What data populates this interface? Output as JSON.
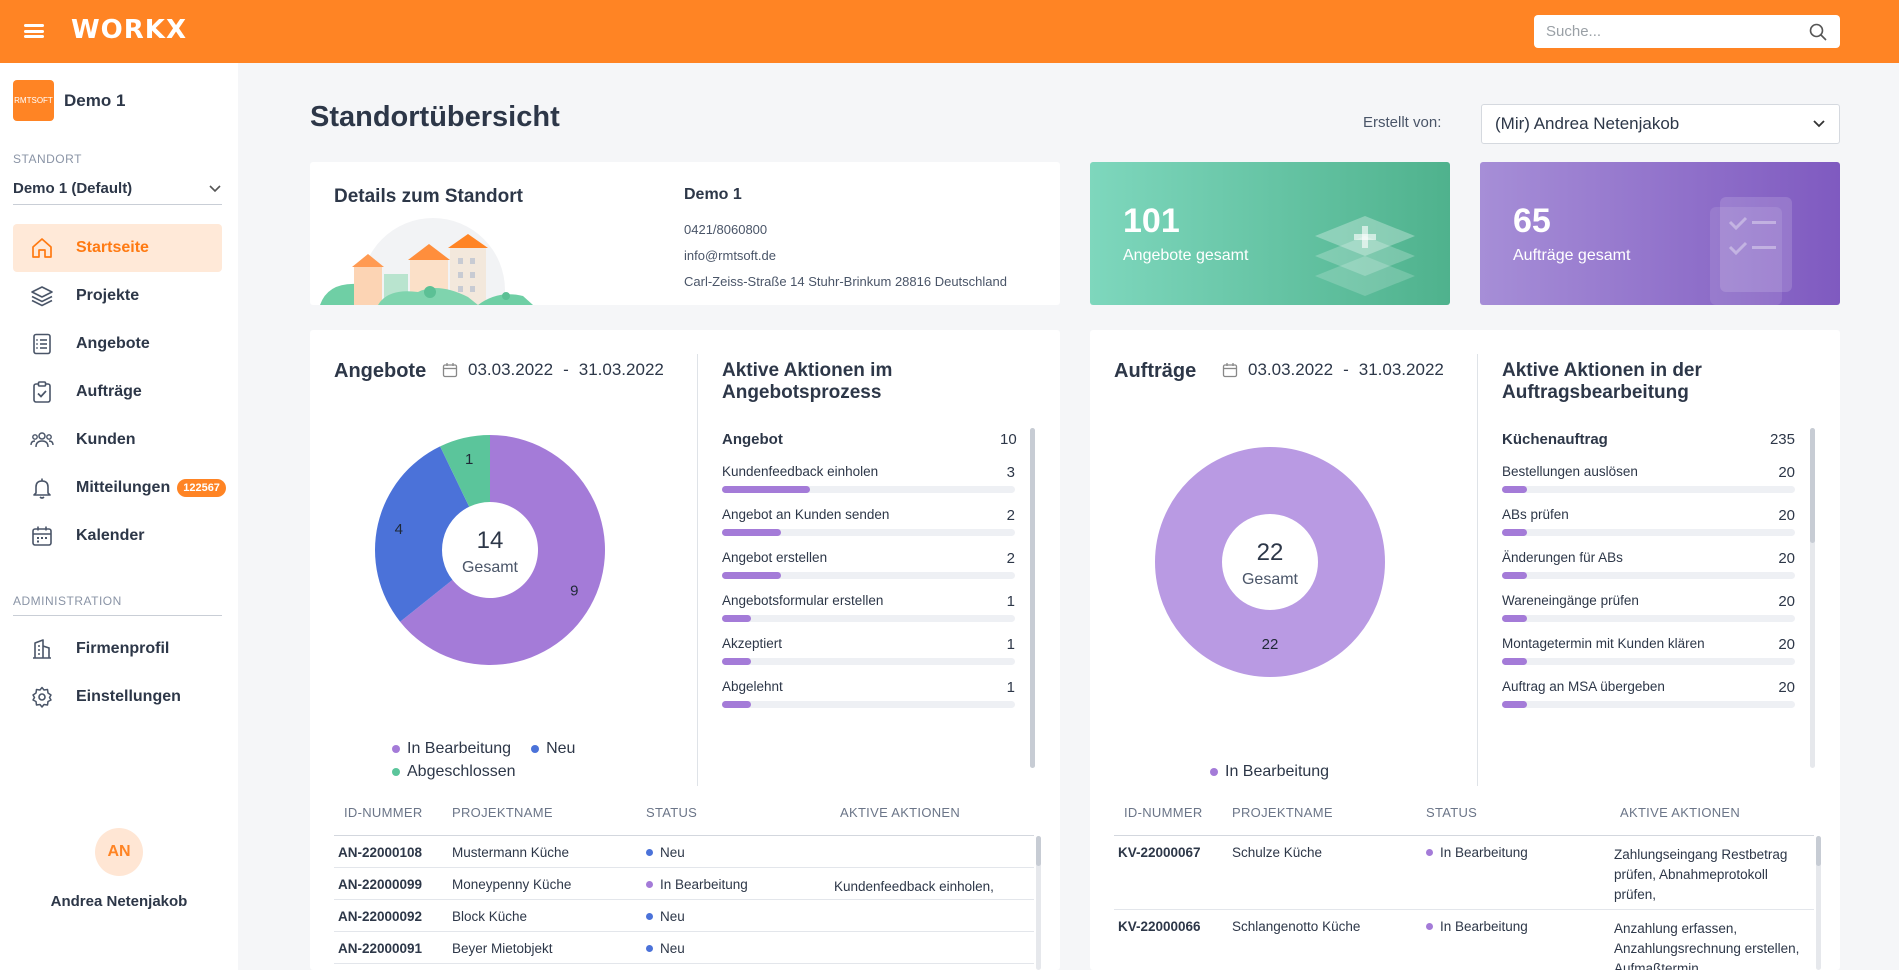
{
  "colors": {
    "brand": "#ff8424",
    "purple": "#a47bd8",
    "blue": "#4b72d9",
    "green": "#5bc59b"
  },
  "header": {
    "logo": "WORKX",
    "search_placeholder": "Suche..."
  },
  "sidebar": {
    "site_name": "Demo 1",
    "site_logo_text": "RMTSOFT",
    "standort_label": "STANDORT",
    "standort_value": "Demo 1 (Default)",
    "items": [
      {
        "label": "Startseite",
        "icon": "home-icon"
      },
      {
        "label": "Projekte",
        "icon": "layers-icon"
      },
      {
        "label": "Angebote",
        "icon": "document-list-icon"
      },
      {
        "label": "Aufträge",
        "icon": "clipboard-check-icon"
      },
      {
        "label": "Kunden",
        "icon": "users-icon"
      },
      {
        "label": "Mitteilungen",
        "icon": "bell-icon",
        "badge": "122567"
      },
      {
        "label": "Kalender",
        "icon": "calendar-icon"
      }
    ],
    "admin_label": "ADMINISTRATION",
    "admin_items": [
      {
        "label": "Firmenprofil",
        "icon": "building-icon"
      },
      {
        "label": "Einstellungen",
        "icon": "gear-icon"
      }
    ],
    "user_initials": "AN",
    "user_name": "Andrea Netenjakob"
  },
  "main": {
    "title": "Standortübersicht",
    "creator_label": "Erstellt von:",
    "creator_value": "(Mir) Andrea Netenjakob",
    "details": {
      "title": "Details zum Standort",
      "name": "Demo 1",
      "phone": "0421/8060800",
      "email": "info@rmtsoft.de",
      "address": "Carl-Zeiss-Straße 14 Stuhr-Brinkum 28816 Deutschland"
    },
    "stats": [
      {
        "value": "101",
        "label": "Angebote gesamt"
      },
      {
        "value": "65",
        "label": "Aufträge gesamt"
      }
    ],
    "angebote": {
      "title": "Angebote",
      "date_from": "03.03.2022",
      "date_sep": "-",
      "date_to": "31.03.2022",
      "total": "14",
      "total_label": "Gesamt",
      "legend": [
        "In Bearbeitung",
        "Neu",
        "Abgeschlossen"
      ],
      "actions_title_1": "Aktive Aktionen im",
      "actions_title_2": "Angebotsprozess",
      "actions_group": "Angebot",
      "actions_group_count": "10",
      "actions": [
        {
          "label": "Kundenfeedback einholen",
          "value": "3",
          "fill": 0.3
        },
        {
          "label": "Angebot an Kunden senden",
          "value": "2",
          "fill": 0.2
        },
        {
          "label": "Angebot erstellen",
          "value": "2",
          "fill": 0.2
        },
        {
          "label": "Angebotsformular erstellen",
          "value": "1",
          "fill": 0.1
        },
        {
          "label": "Akzeptiert",
          "value": "1",
          "fill": 0.1
        },
        {
          "label": "Abgelehnt",
          "value": "1",
          "fill": 0.1
        }
      ],
      "table_headers": [
        "ID-NUMMER",
        "PROJEKTNAME",
        "STATUS",
        "AKTIVE AKTIONEN"
      ],
      "rows": [
        {
          "id": "AN-22000108",
          "name": "Mustermann Küche",
          "status": "Neu",
          "status_color": "#4b72d9",
          "actions": ""
        },
        {
          "id": "AN-22000099",
          "name": "Moneypenny Küche",
          "status": "In Bearbeitung",
          "status_color": "#a47bd8",
          "actions": "Kundenfeedback einholen,"
        },
        {
          "id": "AN-22000092",
          "name": "Block Küche",
          "status": "Neu",
          "status_color": "#4b72d9",
          "actions": ""
        },
        {
          "id": "AN-22000091",
          "name": "Beyer Mietobjekt",
          "status": "Neu",
          "status_color": "#4b72d9",
          "actions": ""
        }
      ]
    },
    "auftraege": {
      "title": "Aufträge",
      "date_from": "03.03.2022",
      "date_sep": "-",
      "date_to": "31.03.2022",
      "total": "22",
      "total_label": "Gesamt",
      "legend": [
        "In Bearbeitung"
      ],
      "actions_title_1": "Aktive Aktionen in der",
      "actions_title_2": "Auftragsbearbeitung",
      "actions_group": "Küchenauftrag",
      "actions_group_count": "235",
      "actions": [
        {
          "label": "Bestellungen auslösen",
          "value": "20",
          "fill": 0.085
        },
        {
          "label": "ABs prüfen",
          "value": "20",
          "fill": 0.085
        },
        {
          "label": "Änderungen für ABs",
          "value": "20",
          "fill": 0.085
        },
        {
          "label": "Wareneingänge prüfen",
          "value": "20",
          "fill": 0.085
        },
        {
          "label": "Montagetermin mit Kunden klären",
          "value": "20",
          "fill": 0.085
        },
        {
          "label": "Auftrag an MSA übergeben",
          "value": "20",
          "fill": 0.085
        }
      ],
      "table_headers": [
        "ID-NUMMER",
        "PROJEKTNAME",
        "STATUS",
        "AKTIVE AKTIONEN"
      ],
      "rows": [
        {
          "id": "KV-22000067",
          "name": "Schulze Küche",
          "status": "In Bearbeitung",
          "status_color": "#a47bd8",
          "actions": "Zahlungseingang Restbetrag prüfen, Abnahmeprotokoll prüfen,"
        },
        {
          "id": "KV-22000066",
          "name": "Schlangenotto Küche",
          "status": "In Bearbeitung",
          "status_color": "#a47bd8",
          "actions": "Anzahlung erfassen, Anzahlungsrechnung erstellen, Aufmaßtermin"
        }
      ]
    }
  },
  "chart_data": [
    {
      "type": "pie",
      "title": "Angebote",
      "categories": [
        "In Bearbeitung",
        "Neu",
        "Abgeschlossen"
      ],
      "values": [
        9,
        4,
        1
      ],
      "colors": [
        "#a47bd8",
        "#4b72d9",
        "#5bc59b"
      ],
      "center_text": "14 Gesamt"
    },
    {
      "type": "pie",
      "title": "Aufträge",
      "categories": [
        "In Bearbeitung"
      ],
      "values": [
        22
      ],
      "colors": [
        "#b99ae3"
      ],
      "center_text": "22 Gesamt"
    }
  ]
}
